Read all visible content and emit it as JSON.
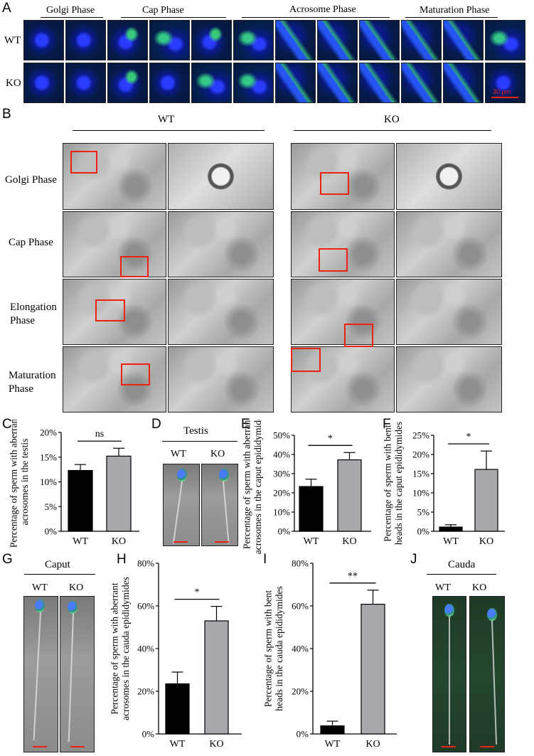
{
  "panels": {
    "A": "A",
    "B": "B",
    "C": "C",
    "D": "D",
    "E": "E",
    "F": "F",
    "G": "G",
    "H": "H",
    "I": "I",
    "J": "J"
  },
  "panelA": {
    "phases": [
      "Golgi Phase",
      "Cap Phase",
      "Acrosome Phase",
      "Maturation Phase"
    ],
    "rows": [
      "WT",
      "KO"
    ],
    "scalebar": "30 μm"
  },
  "panelB": {
    "groups": [
      "WT",
      "KO"
    ],
    "rows": [
      "Golgi Phase",
      "Cap Phase",
      "Elongation Phase",
      "Maturation Phase"
    ]
  },
  "panelD": {
    "title": "Testis",
    "labels": [
      "WT",
      "KO"
    ]
  },
  "panelG": {
    "title": "Caput",
    "labels": [
      "WT",
      "KO"
    ]
  },
  "panelJ": {
    "title": "Cauda",
    "labels": [
      "WT",
      "KO"
    ]
  },
  "colors": {
    "wt_bar": "#000000",
    "ko_bar": "#a8a8ad",
    "red": "#e02010",
    "fluor_blue": "#2a3cff",
    "fluor_green": "#3cdc78"
  },
  "chart_data": [
    {
      "id": "C",
      "type": "bar",
      "categories": [
        "WT",
        "KO"
      ],
      "values": [
        12.3,
        15.2
      ],
      "errors": [
        1.2,
        1.6
      ],
      "ylabel": "Percentage of sperm with aberrant acrosomes in the testis",
      "ylim": [
        0,
        20
      ],
      "ticks": [
        "0%",
        "5%",
        "10%",
        "15%",
        "20%"
      ],
      "significance": "ns"
    },
    {
      "id": "E",
      "type": "bar",
      "categories": [
        "WT",
        "KO"
      ],
      "values": [
        23.3,
        37.2
      ],
      "errors": [
        3.8,
        3.8
      ],
      "ylabel": "Percentage of sperm with aberrant acrosomes in the caput epididymides",
      "ylim": [
        0,
        50
      ],
      "ticks": [
        "0%",
        "10%",
        "20%",
        "30%",
        "40%",
        "50%"
      ],
      "significance": "*"
    },
    {
      "id": "F",
      "type": "bar",
      "categories": [
        "WT",
        "KO"
      ],
      "values": [
        1.1,
        16.1
      ],
      "errors": [
        0.6,
        4.8
      ],
      "ylabel": "Percentage of sperm with bent heads in the caput epididymides",
      "ylim": [
        0,
        25
      ],
      "ticks": [
        "0%",
        "5%",
        "10%",
        "15%",
        "20%",
        "25%"
      ],
      "significance": "*"
    },
    {
      "id": "H",
      "type": "bar",
      "categories": [
        "WT",
        "KO"
      ],
      "values": [
        23.5,
        53.0
      ],
      "errors": [
        5.5,
        6.8
      ],
      "ylabel": "Percentage of sperm with aberrant acrosomes in the cauda epididymides",
      "ylim": [
        0,
        80
      ],
      "ticks": [
        "0%",
        "20%",
        "40%",
        "60%",
        "80%"
      ],
      "significance": "*"
    },
    {
      "id": "I",
      "type": "bar",
      "categories": [
        "WT",
        "KO"
      ],
      "values": [
        3.8,
        60.8
      ],
      "errors": [
        2.2,
        6.6
      ],
      "ylabel": "Percentage of sperm with bent heads in the cauda epididymides",
      "ylim": [
        0,
        80
      ],
      "ticks": [
        "0%",
        "20%",
        "40%",
        "60%",
        "80%"
      ],
      "significance": "**"
    }
  ]
}
